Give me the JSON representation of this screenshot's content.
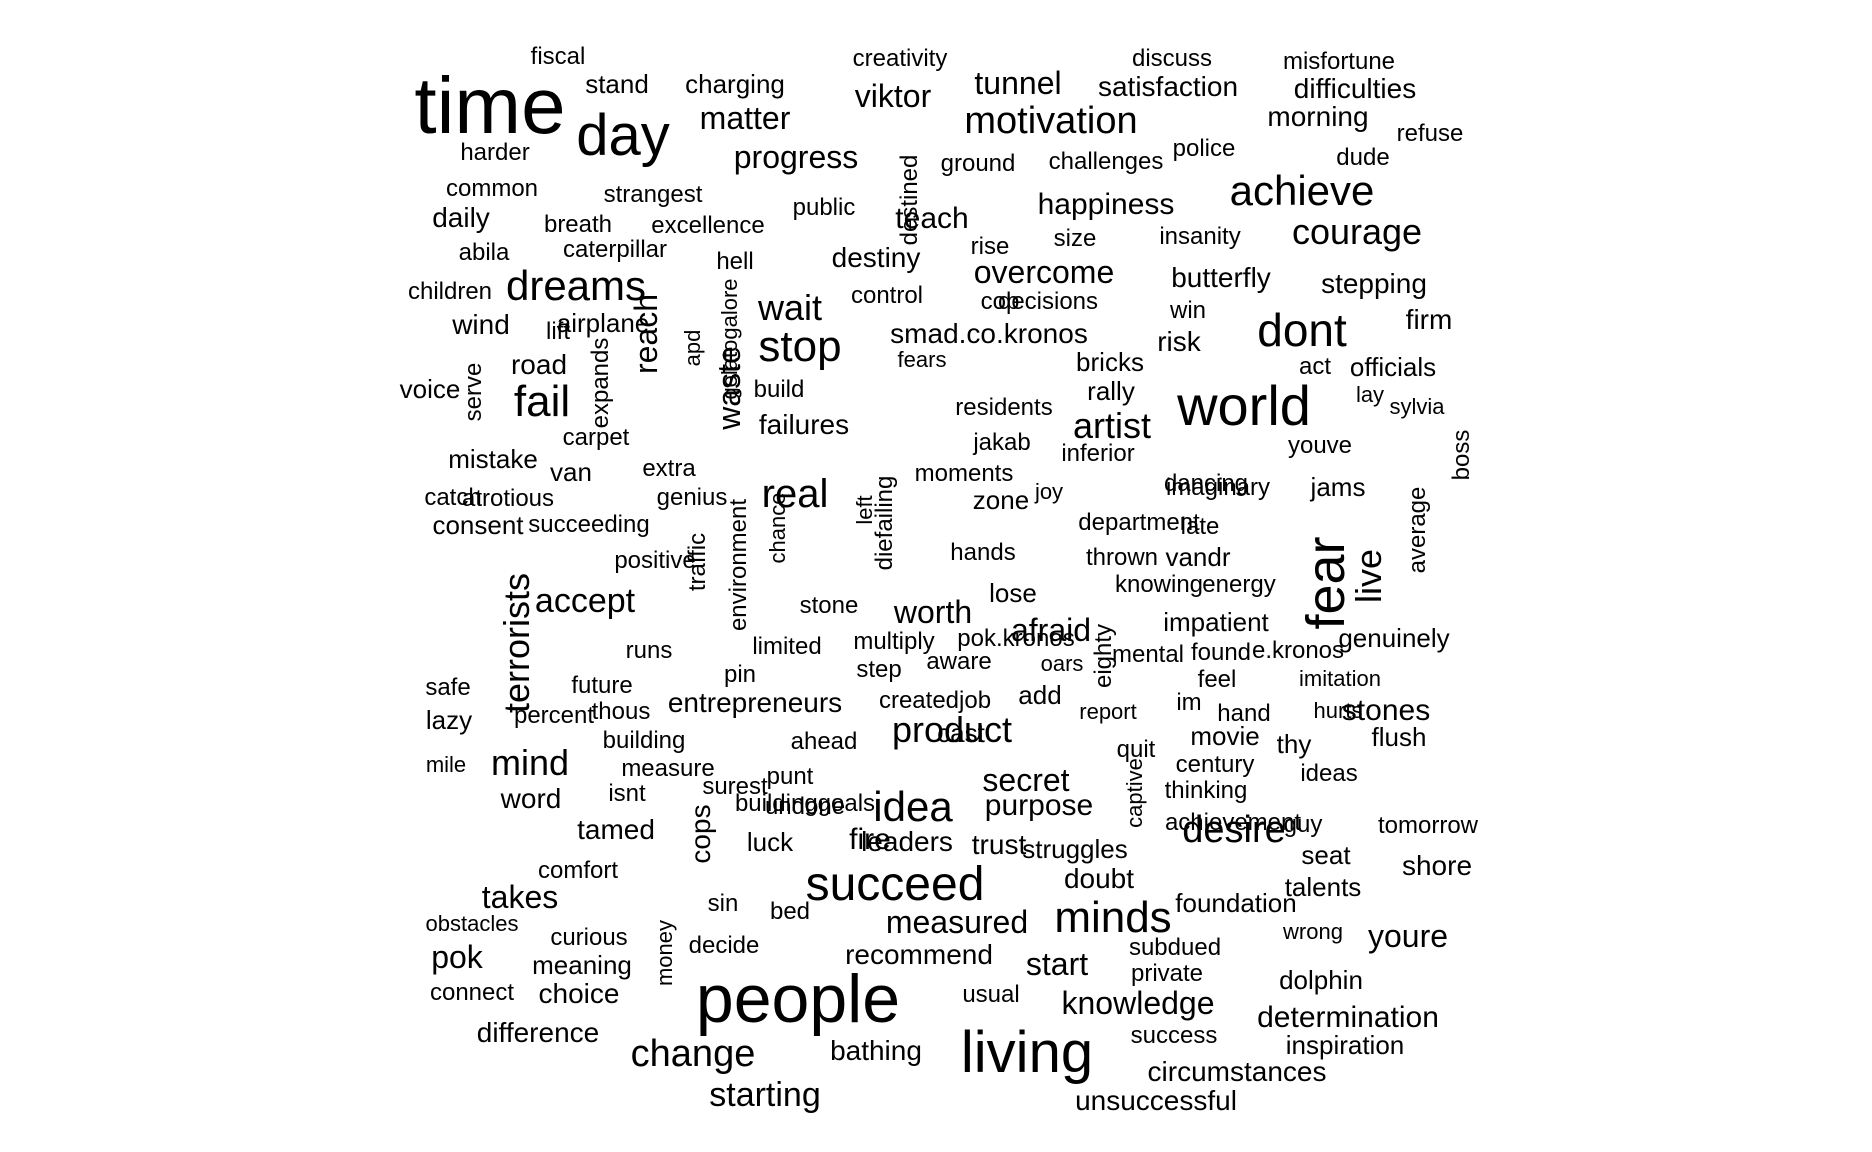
{
  "words": [
    "time",
    "day",
    "people",
    "world",
    "fear",
    "living",
    "succeed",
    "achieve",
    "motivation",
    "dreams",
    "stop",
    "dont",
    "fail",
    "courage",
    "idea",
    "minds",
    "desire",
    "real",
    "product",
    "change",
    "live",
    "terrorists",
    "starting",
    "artist",
    "wait",
    "accept",
    "mind",
    "secret",
    "worth",
    "afraid",
    "progress",
    "matter",
    "viktor",
    "tunnel",
    "measured",
    "recommend",
    "start",
    "knowledge",
    "determination",
    "youre",
    "pok",
    "takes",
    "difference",
    "reach",
    "waste",
    "overcome",
    "happiness",
    "teach",
    "destiny",
    "fire",
    "satisfaction",
    "difficulties",
    "morning",
    "purpose",
    "trust",
    "leaders",
    "failures",
    "wind",
    "road",
    "butterfly",
    "stepping",
    "risk",
    "firm",
    "officials",
    "smad.co.kronos",
    "entrepreneurs",
    "stones",
    "circumstances",
    "unsuccessful",
    "bathing",
    "creativity",
    "fiscal",
    "stand",
    "charging",
    "discuss",
    "misfortune",
    "police",
    "refuse",
    "dude",
    "harder",
    "ground",
    "challenges",
    "common",
    "strangest",
    "public",
    "destined",
    "daily",
    "breath",
    "excellence",
    "insanity",
    "size",
    "rise",
    "abila",
    "caterpillar",
    "hell",
    "children",
    "control",
    "cop",
    "decisions",
    "win",
    "lift",
    "airplane",
    "apd",
    "gelatogalore",
    "fears",
    "bricks",
    "act",
    "voice",
    "serve",
    "expands",
    "build",
    "rally",
    "lay",
    "sylvia",
    "carpet",
    "residents",
    "jakab",
    "youve",
    "mistake",
    "van",
    "extra",
    "moments",
    "inferior",
    "boss",
    "catch",
    "atrotious",
    "genius",
    "zone",
    "joy",
    "dancing",
    "imaginary",
    "jams",
    "consent",
    "succeeding",
    "left",
    "diefailing",
    "chance",
    "department",
    "late",
    "average",
    "positive",
    "traffic",
    "environment",
    "hands",
    "thrown",
    "vandr",
    "knowing",
    "energy",
    "stone",
    "lose",
    "impatient",
    "genuinely",
    "pok.kronos",
    "limited",
    "multiply",
    "runs",
    "pin",
    "step",
    "aware",
    "oars",
    "eighty",
    "mental",
    "found",
    "e.kronos",
    "safe",
    "future",
    "add",
    "feel",
    "imitation",
    "lazy",
    "percent",
    "thous",
    "createdjob",
    "report",
    "im",
    "hand",
    "hurts",
    "building",
    "ahead",
    "cast",
    "movie",
    "thy",
    "flush",
    "quit",
    "century",
    "mile",
    "measure",
    "punt",
    "buildinggoals",
    "captive",
    "isnt",
    "surest",
    "undone",
    "thinking",
    "ideas",
    "word",
    "tamed",
    "cops",
    "luck",
    "achievement",
    "guy",
    "tomorrow",
    "struggles",
    "seat",
    "shore",
    "comfort",
    "doubt",
    "talents",
    "sin",
    "bed",
    "foundation",
    "obstacles",
    "curious",
    "wrong",
    "meaning",
    "decide",
    "money",
    "subdued",
    "private",
    "connect",
    "choice",
    "dolphin",
    "usual",
    "success",
    "inspiration"
  ],
  "palette": {
    "text": "#000000",
    "background": "#ffffff"
  }
}
